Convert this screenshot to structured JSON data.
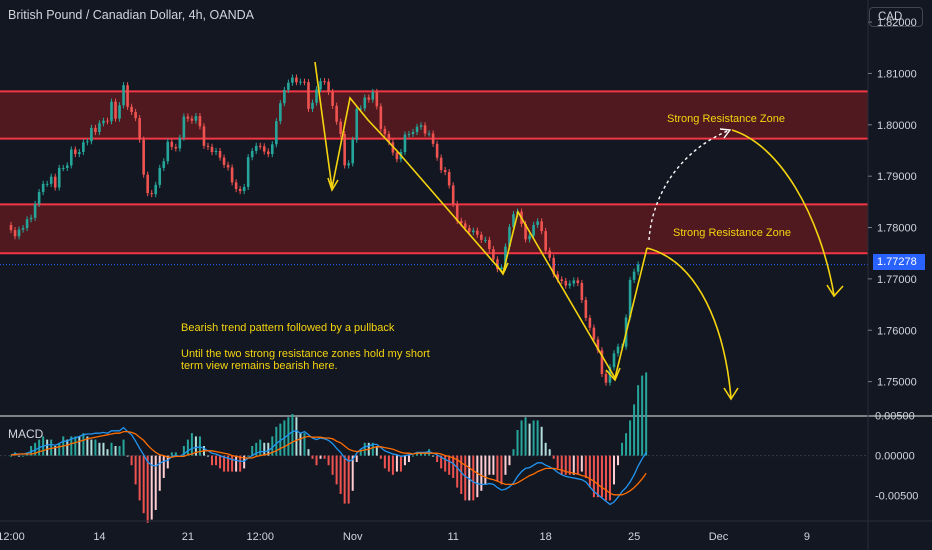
{
  "header": {
    "title": "British Pound / Canadian Dollar, 4h, OANDA",
    "currency": "CAD"
  },
  "macd_label": "MACD",
  "annotations": {
    "pattern_note": "Bearish trend pattern followed by a pullback",
    "view_note_1": "Until the two strong resistance zones hold my short",
    "view_note_2": "term view remains bearish here.",
    "zone_upper_label": "Strong Resistance Zone",
    "zone_lower_label": "Strong Resistance Zone"
  },
  "colors": {
    "background": "#131722",
    "up": "#26a69a",
    "down": "#ef5350",
    "zone_border": "#f23645",
    "zone_fill": "#5a1a1f",
    "annotation": "#f5d40f",
    "macd_line": "#2196f3",
    "signal_line": "#ff6d00",
    "price_tag": "#2962ff"
  },
  "chart_data": {
    "type": "candlestick",
    "price_axis": {
      "ylim": [
        1.7435,
        1.8243
      ],
      "ticks": [
        1.82,
        1.81,
        1.8,
        1.79,
        1.78,
        1.77,
        1.76,
        1.75
      ],
      "tick_labels": [
        "1.82000",
        "1.81000",
        "1.80000",
        "1.79000",
        "1.78000",
        "1.77000",
        "1.76000",
        "1.75000"
      ]
    },
    "current_price": 1.77278,
    "current_price_label": "1.77278",
    "resistance_zones": [
      {
        "name": "Strong Resistance Zone",
        "from": 1.7973,
        "to": 1.8065
      },
      {
        "name": "Strong Resistance Zone",
        "from": 1.775,
        "to": 1.7845
      }
    ],
    "x_axis": {
      "tick_labels": [
        "12:00",
        "14",
        "21",
        "12:00",
        "Nov",
        "11",
        "18",
        "25",
        "Dec",
        "9"
      ],
      "tick_index": [
        0,
        22,
        44,
        62,
        85,
        110,
        133,
        155,
        176,
        198
      ]
    },
    "candles": [
      [
        1.7805,
        1.7795
      ],
      [
        1.7795,
        1.7783
      ],
      [
        1.7783,
        1.7796
      ],
      [
        1.7796,
        1.7799
      ],
      [
        1.7799,
        1.7816
      ],
      [
        1.7816,
        1.7819
      ],
      [
        1.7819,
        1.7846
      ],
      [
        1.7846,
        1.7869
      ],
      [
        1.7869,
        1.7885
      ],
      [
        1.7885,
        1.7885
      ],
      [
        1.7885,
        1.7899
      ],
      [
        1.7899,
        1.7878
      ],
      [
        1.7878,
        1.7916
      ],
      [
        1.7916,
        1.7916
      ],
      [
        1.7916,
        1.7921
      ],
      [
        1.7921,
        1.7952
      ],
      [
        1.7952,
        1.7943
      ],
      [
        1.7943,
        1.7947
      ],
      [
        1.7947,
        1.7966
      ],
      [
        1.7966,
        1.7968
      ],
      [
        1.7968,
        1.7994
      ],
      [
        1.7994,
        1.7986
      ],
      [
        1.7986,
        1.8003
      ],
      [
        1.8003,
        1.8008
      ],
      [
        1.8008,
        1.8007
      ],
      [
        1.8007,
        1.8045
      ],
      [
        1.8045,
        1.8012
      ],
      [
        1.8012,
        1.8038
      ],
      [
        1.8038,
        1.8077
      ],
      [
        1.8077,
        1.8035
      ],
      [
        1.8035,
        1.8025
      ],
      [
        1.8025,
        1.8013
      ],
      [
        1.8013,
        1.7971
      ],
      [
        1.7971,
        1.7903
      ],
      [
        1.7903,
        1.7867
      ],
      [
        1.7867,
        1.7865
      ],
      [
        1.7865,
        1.7883
      ],
      [
        1.7883,
        1.7916
      ],
      [
        1.7916,
        1.7929
      ],
      [
        1.7929,
        1.7967
      ],
      [
        1.7967,
        1.7957
      ],
      [
        1.7957,
        1.7954
      ],
      [
        1.7954,
        1.7975
      ],
      [
        1.7975,
        1.8016
      ],
      [
        1.8016,
        1.8012
      ],
      [
        1.8012,
        1.8008
      ],
      [
        1.8008,
        1.8017
      ],
      [
        1.8017,
        1.7997
      ],
      [
        1.7997,
        1.7959
      ],
      [
        1.7959,
        1.7957
      ],
      [
        1.7957,
        1.7947
      ],
      [
        1.7947,
        1.7949
      ],
      [
        1.7949,
        1.7936
      ],
      [
        1.7936,
        1.7922
      ],
      [
        1.7922,
        1.7917
      ],
      [
        1.7917,
        1.7888
      ],
      [
        1.7888,
        1.7875
      ],
      [
        1.7875,
        1.7871
      ],
      [
        1.7871,
        1.7879
      ],
      [
        1.7879,
        1.7937
      ],
      [
        1.7937,
        1.7949
      ],
      [
        1.7949,
        1.7959
      ],
      [
        1.7959,
        1.7958
      ],
      [
        1.7958,
        1.7948
      ],
      [
        1.7948,
        1.7943
      ],
      [
        1.7943,
        1.7962
      ],
      [
        1.7962,
        1.8007
      ],
      [
        1.8007,
        1.8042
      ],
      [
        1.8042,
        1.8068
      ],
      [
        1.8068,
        1.8082
      ],
      [
        1.8082,
        1.8092
      ],
      [
        1.8092,
        1.8083
      ],
      [
        1.8083,
        1.8084
      ],
      [
        1.8084,
        1.8083
      ],
      [
        1.8083,
        1.8031
      ],
      [
        1.8031,
        1.8043
      ],
      [
        1.8043,
        1.8069
      ],
      [
        1.8069,
        1.8085
      ],
      [
        1.8085,
        1.8084
      ],
      [
        1.8084,
        1.8064
      ],
      [
        1.8064,
        1.8037
      ],
      [
        1.8037,
        1.8006
      ],
      [
        1.8006,
        1.7982
      ],
      [
        1.7982,
        1.7921
      ],
      [
        1.7921,
        1.7925
      ],
      [
        1.7925,
        1.7971
      ],
      [
        1.7971,
        1.8031
      ],
      [
        1.8031,
        1.8032
      ],
      [
        1.8032,
        1.8053
      ],
      [
        1.8053,
        1.8049
      ],
      [
        1.8049,
        1.8064
      ],
      [
        1.8064,
        1.8036
      ],
      [
        1.8036,
        1.7992
      ],
      [
        1.7992,
        1.7982
      ],
      [
        1.7982,
        1.7966
      ],
      [
        1.7966,
        1.7946
      ],
      [
        1.7946,
        1.7933
      ],
      [
        1.7933,
        1.7947
      ],
      [
        1.7947,
        1.7981
      ],
      [
        1.7981,
        1.7982
      ],
      [
        1.7982,
        1.7986
      ],
      [
        1.7986,
        1.7996
      ],
      [
        1.7996,
        1.7999
      ],
      [
        1.7999,
        1.7983
      ],
      [
        1.7983,
        1.7983
      ],
      [
        1.7983,
        1.7963
      ],
      [
        1.7963,
        1.7936
      ],
      [
        1.7936,
        1.7912
      ],
      [
        1.7912,
        1.7908
      ],
      [
        1.7908,
        1.7882
      ],
      [
        1.7882,
        1.7846
      ],
      [
        1.7846,
        1.7813
      ],
      [
        1.7813,
        1.7808
      ],
      [
        1.7808,
        1.7799
      ],
      [
        1.7799,
        1.7791
      ],
      [
        1.7791,
        1.7794
      ],
      [
        1.7794,
        1.7786
      ],
      [
        1.7786,
        1.7776
      ],
      [
        1.7776,
        1.7776
      ],
      [
        1.7776,
        1.7758
      ],
      [
        1.7758,
        1.7738
      ],
      [
        1.7738,
        1.7719
      ],
      [
        1.7719,
        1.7722
      ],
      [
        1.7722,
        1.7763
      ],
      [
        1.7763,
        1.7801
      ],
      [
        1.7801,
        1.7826
      ],
      [
        1.7826,
        1.7831
      ],
      [
        1.7831,
        1.7807
      ],
      [
        1.7807,
        1.7777
      ],
      [
        1.7777,
        1.7784
      ],
      [
        1.7784,
        1.7805
      ],
      [
        1.7805,
        1.7812
      ],
      [
        1.7812,
        1.7793
      ],
      [
        1.7793,
        1.7755
      ],
      [
        1.7755,
        1.7741
      ],
      [
        1.7741,
        1.7709
      ],
      [
        1.7709,
        1.7699
      ],
      [
        1.7699,
        1.7696
      ],
      [
        1.7696,
        1.7687
      ],
      [
        1.7687,
        1.7691
      ],
      [
        1.7691,
        1.7697
      ],
      [
        1.7697,
        1.7692
      ],
      [
        1.7692,
        1.7659
      ],
      [
        1.7659,
        1.7624
      ],
      [
        1.7624,
        1.7605
      ],
      [
        1.7605,
        1.7582
      ],
      [
        1.7582,
        1.7561
      ],
      [
        1.7561,
        1.7515
      ],
      [
        1.7515,
        1.7498
      ],
      [
        1.7498,
        1.7528
      ],
      [
        1.7528,
        1.7555
      ],
      [
        1.7555,
        1.7568
      ],
      [
        1.7568,
        1.7568
      ],
      [
        1.7568,
        1.7625
      ],
      [
        1.7625,
        1.7698
      ],
      [
        1.7698,
        1.7714
      ],
      [
        1.7714,
        1.7728
      ]
    ],
    "macd": {
      "axis": {
        "ticks": [
          0.005,
          0.0,
          -0.005
        ],
        "tick_labels": [
          "0.00500",
          "0.00000",
          "-0.00500"
        ],
        "ylim": [
          -0.0078,
          0.0047
        ]
      },
      "macd_line": [
        0.0001,
        0.0002,
        0.0002,
        0.0002,
        0.0003,
        0.0005,
        0.0007,
        0.001,
        0.0012,
        0.0013,
        0.0014,
        0.0013,
        0.0015,
        0.0018,
        0.0018,
        0.0021,
        0.0022,
        0.0024,
        0.0026,
        0.0027,
        0.0027,
        0.0028,
        0.0028,
        0.0029,
        0.0028,
        0.0031,
        0.0031,
        0.0031,
        0.0035,
        0.003,
        0.0026,
        0.0018,
        0.0009,
        0.0001,
        -0.0008,
        -0.0012,
        -0.0013,
        -0.001,
        -0.0007,
        -0.0006,
        -0.0001,
        0.0,
        -0.0001,
        0.0002,
        0.0006,
        0.0009,
        0.001,
        0.0011,
        0.0009,
        0.0006,
        0.0003,
        0.0002,
        0.0,
        -0.0002,
        -0.0003,
        -0.0005,
        -0.0006,
        -0.0007,
        -0.0007,
        -0.0003,
        0.0,
        0.0003,
        0.0005,
        0.0005,
        0.0006,
        0.001,
        0.0015,
        0.0019,
        0.0022,
        0.0026,
        0.003,
        0.0031,
        0.0028,
        0.003,
        0.0026,
        0.0022,
        0.002,
        0.0022,
        0.0021,
        0.0019,
        0.0015,
        0.0009,
        0.0004,
        -0.0003,
        -0.0007,
        -0.0005,
        0.0003,
        0.0008,
        0.0011,
        0.0012,
        0.0014,
        0.0014,
        0.001,
        0.0006,
        0.0004,
        0.0002,
        0.0001,
        -0.0001,
        0.0,
        0.0001,
        0.0002,
        0.0004,
        0.0004,
        0.0004,
        0.0005,
        0.0003,
        0.0001,
        -0.0002,
        -0.0005,
        -0.0007,
        -0.001,
        -0.0015,
        -0.0021,
        -0.0026,
        -0.0029,
        -0.0033,
        -0.0035,
        -0.0036,
        -0.0036,
        -0.0035,
        -0.0036,
        -0.004,
        -0.0043,
        -0.0042,
        -0.0039,
        -0.0034,
        -0.0026,
        -0.002,
        -0.0016,
        -0.0015,
        -0.0012,
        -0.0009,
        -0.0009,
        -0.0012,
        -0.0014,
        -0.0017,
        -0.0021,
        -0.0024,
        -0.0026,
        -0.0027,
        -0.0028,
        -0.0029,
        -0.003,
        -0.0033,
        -0.0039,
        -0.0045,
        -0.0049,
        -0.0053,
        -0.0057,
        -0.0061,
        -0.0058,
        -0.0052,
        -0.0045,
        -0.004,
        -0.0033,
        -0.0024,
        -0.0013,
        -0.0004,
        0.0004
      ],
      "signal_line": [
        0.0001,
        0.0001,
        0.0002,
        0.0002,
        0.0002,
        0.0002,
        0.0003,
        0.0005,
        0.0006,
        0.0008,
        0.0009,
        0.001,
        0.0011,
        0.0012,
        0.0013,
        0.0015,
        0.0016,
        0.0018,
        0.0019,
        0.0021,
        0.0022,
        0.0023,
        0.0024,
        0.0025,
        0.0026,
        0.0027,
        0.0028,
        0.0028,
        0.003,
        0.003,
        0.0029,
        0.0027,
        0.0023,
        0.0019,
        0.0013,
        0.0008,
        0.0004,
        0.0001,
        0.0,
        -0.0002,
        -0.0002,
        -0.0001,
        -0.0001,
        -0.0001,
        0.0001,
        0.0002,
        0.0004,
        0.0005,
        0.0006,
        0.0006,
        0.0006,
        0.0005,
        0.0004,
        0.0003,
        0.0002,
        0.0,
        -0.0001,
        -0.0002,
        -0.0003,
        -0.0003,
        -0.0003,
        -0.0001,
        0.0,
        0.0001,
        0.0002,
        0.0004,
        0.0006,
        0.0009,
        0.0011,
        0.0014,
        0.0017,
        0.0019,
        0.0021,
        0.0023,
        0.0024,
        0.0023,
        0.0023,
        0.0023,
        0.0022,
        0.0022,
        0.0021,
        0.0018,
        0.0016,
        0.0012,
        0.0008,
        0.0006,
        0.0005,
        0.0006,
        0.0007,
        0.0008,
        0.001,
        0.0011,
        0.0011,
        0.001,
        0.0009,
        0.0008,
        0.0006,
        0.0004,
        0.0003,
        0.0003,
        0.0002,
        0.0003,
        0.0003,
        0.0003,
        0.0003,
        0.0003,
        0.0003,
        0.0002,
        0.0,
        -0.0001,
        -0.0003,
        -0.0005,
        -0.0009,
        -0.0012,
        -0.0015,
        -0.0019,
        -0.0022,
        -0.0025,
        -0.0027,
        -0.0029,
        -0.003,
        -0.0032,
        -0.0034,
        -0.0036,
        -0.0036,
        -0.0036,
        -0.0034,
        -0.0031,
        -0.0028,
        -0.0025,
        -0.0023,
        -0.002,
        -0.0018,
        -0.0016,
        -0.0016,
        -0.0016,
        -0.0017,
        -0.0018,
        -0.002,
        -0.0021,
        -0.0022,
        -0.0023,
        -0.0025,
        -0.0026,
        -0.0029,
        -0.0032,
        -0.0036,
        -0.004,
        -0.0043,
        -0.0047,
        -0.0049,
        -0.0049,
        -0.0049,
        -0.0047,
        -0.0044,
        -0.004,
        -0.0035,
        -0.0029,
        -0.0022
      ]
    }
  }
}
